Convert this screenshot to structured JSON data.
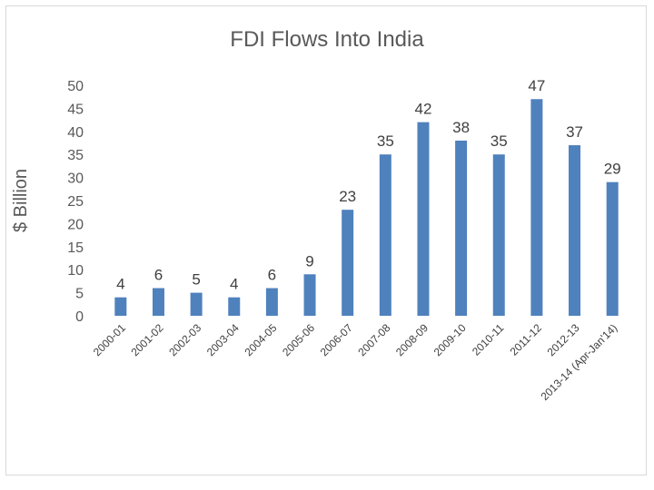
{
  "chart_data": {
    "type": "bar",
    "title": "FDI Flows Into India",
    "xlabel": "",
    "ylabel": "$ Billion",
    "ylim": [
      0,
      50
    ],
    "yticks": [
      0,
      5,
      10,
      15,
      20,
      25,
      30,
      35,
      40,
      45,
      50
    ],
    "grid": false,
    "legend": "none",
    "bar_color": "#4f81bd",
    "categories": [
      "2000-01",
      "2001-02",
      "2002-03",
      "2003-04",
      "2004-05",
      "2005-06",
      "2006-07",
      "2007-08",
      "2008-09",
      "2009-10",
      "2010-11",
      "2011-12",
      "2012-13",
      "2013-14 (Apr-Jan'14)"
    ],
    "values": [
      4,
      6,
      5,
      4,
      6,
      9,
      23,
      35,
      42,
      38,
      35,
      47,
      37,
      29
    ],
    "data_labels": [
      "4",
      "6",
      "5",
      "4",
      "6",
      "9",
      "23",
      "35",
      "42",
      "38",
      "35",
      "47",
      "37",
      "29"
    ]
  }
}
